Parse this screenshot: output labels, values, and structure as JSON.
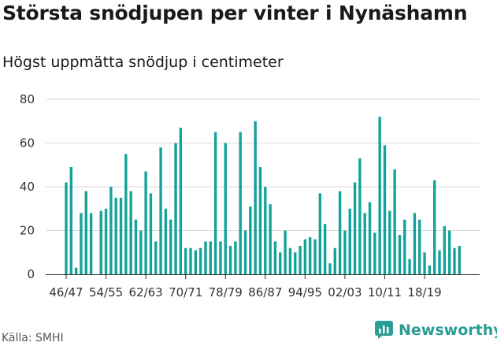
{
  "header": {
    "title": "Största snödjupen per vinter i Nynäshamn",
    "subtitle": "Högst uppmätta snödjup i centimeter"
  },
  "footer": {
    "source": "Källa: SMHI",
    "brand": "Newsworthy",
    "brand_icon": "newsworthy-logo-icon"
  },
  "colors": {
    "bar": "#14a39a",
    "grid": "#d9d9d9",
    "axis": "#333333",
    "brand": "#2a9d94"
  },
  "chart_data": {
    "type": "bar",
    "title": "Största snödjupen per vinter i Nynäshamn",
    "subtitle": "Högst uppmätta snödjup i centimeter",
    "xlabel": "",
    "ylabel": "",
    "ylim": [
      0,
      80
    ],
    "yticks": [
      0,
      20,
      40,
      60,
      80
    ],
    "grid": true,
    "first_winter": "46/47",
    "x_tick_labels": [
      {
        "index": 0,
        "label": "46/47"
      },
      {
        "index": 8,
        "label": "54/55"
      },
      {
        "index": 16,
        "label": "62/63"
      },
      {
        "index": 24,
        "label": "70/71"
      },
      {
        "index": 32,
        "label": "78/79"
      },
      {
        "index": 40,
        "label": "86/87"
      },
      {
        "index": 48,
        "label": "94/95"
      },
      {
        "index": 56,
        "label": "02/03"
      },
      {
        "index": 64,
        "label": "10/11"
      },
      {
        "index": 72,
        "label": "18/19"
      }
    ],
    "values": [
      42,
      49,
      3,
      28,
      38,
      28,
      null,
      29,
      30,
      40,
      35,
      35,
      55,
      38,
      25,
      20,
      47,
      37,
      15,
      58,
      30,
      25,
      60,
      67,
      12,
      12,
      11,
      12,
      15,
      15,
      65,
      15,
      60,
      13,
      15,
      65,
      20,
      31,
      70,
      49,
      40,
      32,
      15,
      10,
      20,
      12,
      10,
      13,
      16,
      17,
      16,
      37,
      23,
      5,
      12,
      38,
      20,
      30,
      42,
      53,
      28,
      33,
      19,
      72,
      59,
      29,
      48,
      18,
      25,
      7,
      28,
      25,
      10,
      4,
      43,
      11,
      22,
      20,
      12,
      13
    ]
  }
}
